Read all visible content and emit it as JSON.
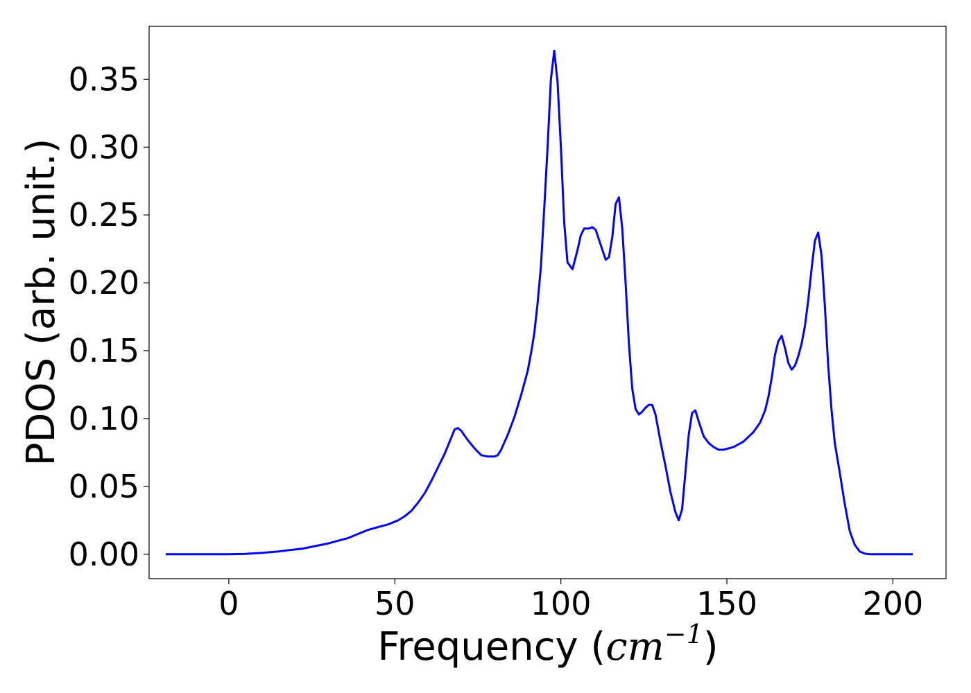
{
  "chart_data": {
    "type": "line",
    "xlabel": {
      "text": "Frequency (",
      "unit_base": "cm",
      "unit_exp": "−1",
      "close": ")"
    },
    "ylabel": "PDOS (arb. unit.)",
    "xlim": [
      -24,
      216
    ],
    "ylim": [
      -0.018,
      0.389
    ],
    "xticks": [
      0,
      50,
      100,
      150,
      200
    ],
    "xtick_labels": [
      "0",
      "50",
      "100",
      "150",
      "200"
    ],
    "yticks": [
      0.0,
      0.05,
      0.1,
      0.15,
      0.2,
      0.25,
      0.3,
      0.35
    ],
    "ytick_labels": [
      "0.00",
      "0.05",
      "0.10",
      "0.15",
      "0.20",
      "0.25",
      "0.30",
      "0.35"
    ],
    "grid": false,
    "legend": "none",
    "series": [
      {
        "color": "#0000ff",
        "points": [
          [
            -19,
            0.0
          ],
          [
            0,
            0.0
          ],
          [
            5,
            0.0003
          ],
          [
            10,
            0.001
          ],
          [
            15,
            0.002
          ],
          [
            18,
            0.003
          ],
          [
            22,
            0.004
          ],
          [
            26,
            0.006
          ],
          [
            30,
            0.008
          ],
          [
            33,
            0.01
          ],
          [
            36,
            0.012
          ],
          [
            38,
            0.014
          ],
          [
            40,
            0.016
          ],
          [
            42,
            0.018
          ],
          [
            45,
            0.02
          ],
          [
            48,
            0.022
          ],
          [
            51,
            0.025
          ],
          [
            53,
            0.028
          ],
          [
            55,
            0.032
          ],
          [
            57,
            0.038
          ],
          [
            59,
            0.045
          ],
          [
            61,
            0.054
          ],
          [
            63,
            0.064
          ],
          [
            65,
            0.074
          ],
          [
            67,
            0.086
          ],
          [
            68,
            0.092
          ],
          [
            69,
            0.093
          ],
          [
            70,
            0.091
          ],
          [
            72,
            0.084
          ],
          [
            74,
            0.078
          ],
          [
            76,
            0.073
          ],
          [
            78,
            0.072
          ],
          [
            80,
            0.072
          ],
          [
            81,
            0.073
          ],
          [
            82,
            0.077
          ],
          [
            84,
            0.088
          ],
          [
            86,
            0.101
          ],
          [
            88,
            0.117
          ],
          [
            90,
            0.135
          ],
          [
            91,
            0.148
          ],
          [
            92,
            0.163
          ],
          [
            93,
            0.185
          ],
          [
            94,
            0.212
          ],
          [
            95,
            0.255
          ],
          [
            96,
            0.3
          ],
          [
            97,
            0.35
          ],
          [
            98,
            0.371
          ],
          [
            99,
            0.348
          ],
          [
            100,
            0.3
          ],
          [
            101,
            0.245
          ],
          [
            102,
            0.215
          ],
          [
            103.5,
            0.21
          ],
          [
            105,
            0.224
          ],
          [
            106,
            0.235
          ],
          [
            107,
            0.24
          ],
          [
            108.5,
            0.24
          ],
          [
            109.5,
            0.241
          ],
          [
            110.5,
            0.239
          ],
          [
            112,
            0.228
          ],
          [
            113.5,
            0.217
          ],
          [
            114.5,
            0.219
          ],
          [
            115.5,
            0.234
          ],
          [
            116.5,
            0.258
          ],
          [
            117.5,
            0.263
          ],
          [
            118.5,
            0.24
          ],
          [
            119.5,
            0.2
          ],
          [
            120.5,
            0.155
          ],
          [
            121.5,
            0.122
          ],
          [
            122.5,
            0.107
          ],
          [
            123.5,
            0.103
          ],
          [
            124.5,
            0.105
          ],
          [
            125.5,
            0.108
          ],
          [
            126.5,
            0.11
          ],
          [
            127.5,
            0.11
          ],
          [
            128.5,
            0.103
          ],
          [
            130,
            0.083
          ],
          [
            131.5,
            0.065
          ],
          [
            133,
            0.046
          ],
          [
            134.5,
            0.031
          ],
          [
            135.5,
            0.025
          ],
          [
            136.5,
            0.033
          ],
          [
            137.5,
            0.06
          ],
          [
            138.5,
            0.088
          ],
          [
            139.5,
            0.104
          ],
          [
            140.5,
            0.106
          ],
          [
            141.5,
            0.098
          ],
          [
            143,
            0.087
          ],
          [
            144.5,
            0.082
          ],
          [
            146,
            0.079
          ],
          [
            147.5,
            0.077
          ],
          [
            149,
            0.077
          ],
          [
            152,
            0.079
          ],
          [
            155,
            0.083
          ],
          [
            158,
            0.09
          ],
          [
            160,
            0.097
          ],
          [
            161.5,
            0.106
          ],
          [
            162.5,
            0.116
          ],
          [
            163.5,
            0.13
          ],
          [
            164.5,
            0.147
          ],
          [
            165.5,
            0.157
          ],
          [
            166.5,
            0.161
          ],
          [
            167.5,
            0.152
          ],
          [
            168.5,
            0.141
          ],
          [
            169.5,
            0.136
          ],
          [
            170.5,
            0.139
          ],
          [
            171.5,
            0.146
          ],
          [
            172.5,
            0.155
          ],
          [
            173.5,
            0.168
          ],
          [
            174.5,
            0.187
          ],
          [
            175.5,
            0.21
          ],
          [
            176.5,
            0.231
          ],
          [
            177.5,
            0.237
          ],
          [
            178.5,
            0.22
          ],
          [
            179.5,
            0.183
          ],
          [
            180.5,
            0.14
          ],
          [
            181.5,
            0.107
          ],
          [
            182.5,
            0.082
          ],
          [
            184,
            0.06
          ],
          [
            185.5,
            0.037
          ],
          [
            187,
            0.017
          ],
          [
            188.5,
            0.007
          ],
          [
            190,
            0.002
          ],
          [
            191.5,
            0.0005
          ],
          [
            193,
            0.0
          ],
          [
            206,
            0.0
          ]
        ]
      }
    ]
  }
}
